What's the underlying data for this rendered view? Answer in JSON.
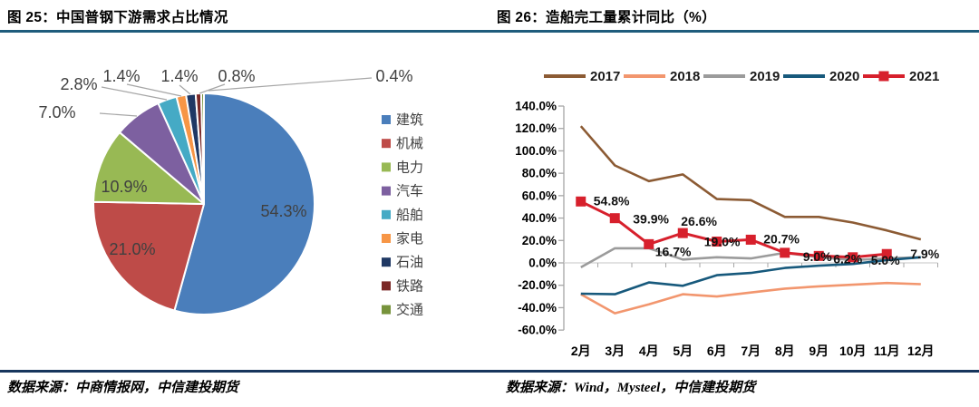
{
  "figures": {
    "left": {
      "title": "图 25：中国普钢下游需求占比情况",
      "source": "数据来源：中商情报网，中信建投期货"
    },
    "right": {
      "title": "图 26：造船完工量累计同比（%）",
      "source": "数据来源：Wind，Mysteel，中信建投期货"
    }
  },
  "colors": {
    "title_rule": "#1E5C7C",
    "bottom_rule": "#17365D",
    "axis": "#A6A6A6",
    "zero_line": "#D9D9D9",
    "leader_line": "#A6A6A6",
    "pie_label": "#404040",
    "legend_label": "#3F3F3F",
    "tick_label": "#000000",
    "point_label": "#111111"
  },
  "chart_data": [
    {
      "type": "pie",
      "title": "中国普钢下游需求占比情况",
      "categories": [
        "建筑",
        "机械",
        "电力",
        "汽车",
        "船舶",
        "家电",
        "石油",
        "铁路",
        "交通"
      ],
      "values": [
        54.3,
        21.0,
        10.9,
        7.0,
        2.8,
        1.4,
        1.4,
        0.8,
        0.4
      ],
      "labels": [
        "54.3%",
        "21.0%",
        "10.9%",
        "7.0%",
        "2.8%",
        "1.4%",
        "1.4%",
        "0.8%",
        "0.4%"
      ],
      "colors": [
        "#4A7EBB",
        "#BE4B48",
        "#98B954",
        "#7D60A0",
        "#45AAC5",
        "#F79646",
        "#1F3864",
        "#7B2927",
        "#77933C"
      ],
      "legend_position": "right"
    },
    {
      "type": "line",
      "title": "造船完工量累计同比（%）",
      "categories": [
        "2月",
        "3月",
        "4月",
        "5月",
        "6月",
        "7月",
        "8月",
        "9月",
        "10月",
        "11月",
        "12月"
      ],
      "ylim": [
        -60,
        140
      ],
      "ytick_step": 20,
      "ytick_labels": [
        "140.0%",
        "120.0%",
        "100.0%",
        "80.0%",
        "60.0%",
        "40.0%",
        "20.0%",
        "0.0%",
        "-20.0%",
        "-40.0%",
        "-60.0%"
      ],
      "legend_position": "top",
      "series": [
        {
          "name": "2017",
          "color": "#8C5B34",
          "values": [
            122,
            87,
            73,
            79,
            57,
            56,
            41,
            41,
            36,
            29,
            21
          ]
        },
        {
          "name": "2018",
          "color": "#F2966E",
          "values": [
            -28,
            -45,
            -37,
            -28,
            -30,
            -26.5,
            -23,
            -21,
            -19.5,
            -18,
            -19
          ]
        },
        {
          "name": "2019",
          "color": "#9B9B9B",
          "values": [
            -4,
            13,
            13,
            3,
            5,
            4,
            9,
            5,
            2.5,
            4,
            5
          ]
        },
        {
          "name": "2020",
          "color": "#17597C",
          "values": [
            -27.5,
            -28,
            -17.5,
            -20.5,
            -11,
            -9,
            -4.5,
            -2.5,
            -1,
            2.5,
            5
          ]
        },
        {
          "name": "2021",
          "color": "#D7202C",
          "marker": "square",
          "values": [
            54.8,
            39.9,
            16.7,
            26.6,
            19.0,
            20.7,
            9.0,
            6.2,
            5.0,
            7.9,
            null
          ],
          "point_labels": [
            "54.8%",
            "39.9%",
            "16.7%",
            "26.6%",
            "19.0%",
            "20.7%",
            "9.0%",
            "6.2%",
            "5.0%",
            "7.9%",
            ""
          ]
        }
      ]
    }
  ]
}
